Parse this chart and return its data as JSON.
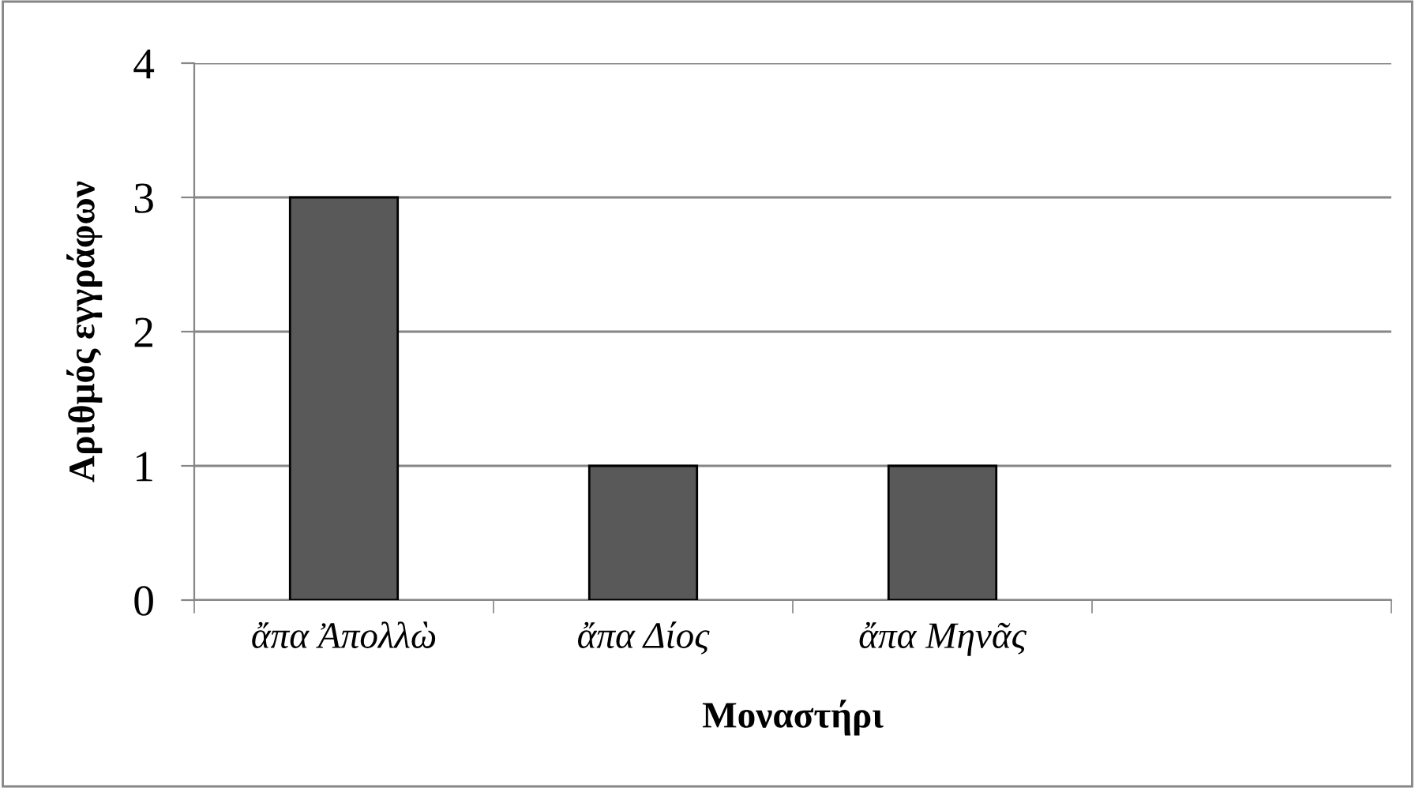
{
  "chart_data": {
    "type": "bar",
    "xlabel": "Μοναστήρι",
    "ylabel": "Αριθμός εγγράφων",
    "categories": [
      "ἄπα Ἀπολλὼ",
      "ἄπα Δίος",
      "ἄπα Μηνᾶς",
      null
    ],
    "values": [
      3,
      1,
      1,
      null
    ],
    "color": "#595959",
    "ylim": [
      0,
      4
    ],
    "yticks": [
      0,
      1,
      2,
      3,
      4
    ],
    "grid": "y"
  }
}
